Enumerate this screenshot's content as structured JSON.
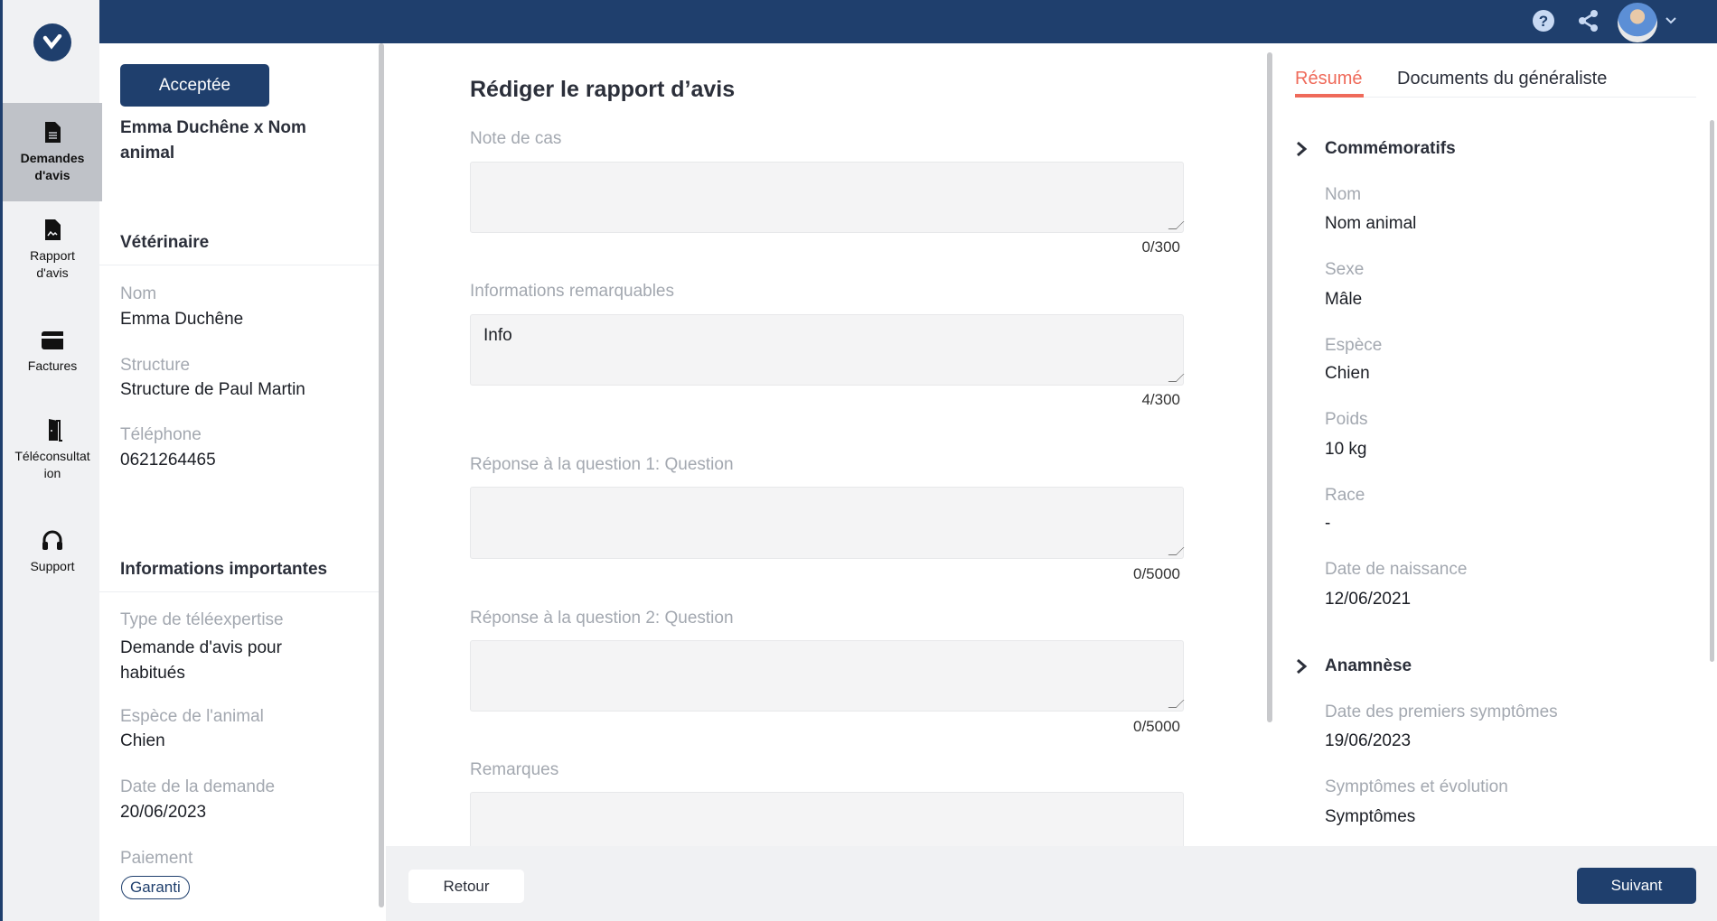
{
  "sidebar": {
    "items": [
      {
        "label1": "Demandes",
        "label2": "d'avis",
        "icon": "document-icon"
      },
      {
        "label1": "Rapport",
        "label2": "d'avis",
        "icon": "signed-document-icon"
      },
      {
        "label1": "Factures",
        "label2": "",
        "icon": "credit-card-icon"
      },
      {
        "label1": "Téléconsultat",
        "label2": "ion",
        "icon": "door-icon"
      },
      {
        "label1": "Support",
        "label2": "",
        "icon": "headset-icon"
      }
    ]
  },
  "topbar": {
    "icons": [
      "help-icon",
      "share-icon",
      "avatar",
      "chevron-down-icon"
    ]
  },
  "left": {
    "status": "Acceptée",
    "title": "Emma Duchêne x Nom animal",
    "vet_heading": "Vétérinaire",
    "vet": [
      {
        "label": "Nom",
        "value": "Emma Duchêne"
      },
      {
        "label": "Structure",
        "value": "Structure de Paul Martin"
      },
      {
        "label": "Téléphone",
        "value": "0621264465"
      }
    ],
    "info_heading": "Informations importantes",
    "info": [
      {
        "label": "Type de téléexpertise",
        "value": "Demande d'avis pour habitués"
      },
      {
        "label": "Espèce de l'animal",
        "value": "Chien"
      },
      {
        "label": "Date de la demande",
        "value": "20/06/2023"
      }
    ],
    "payment_label": "Paiement",
    "payment_badge": "Garanti"
  },
  "main": {
    "title": "Rédiger le rapport d’avis",
    "fields": [
      {
        "label": "Note de cas",
        "value": "",
        "count": "0/300"
      },
      {
        "label": "Informations remarquables",
        "value": "Info",
        "count": "4/300"
      },
      {
        "label": "Réponse à la question 1: Question",
        "value": "",
        "count": "0/5000"
      },
      {
        "label": "Réponse à la question 2: Question",
        "value": "",
        "count": "0/5000"
      },
      {
        "label": "Remarques",
        "value": ""
      }
    ]
  },
  "right": {
    "tabs": [
      {
        "label": "Résumé",
        "active": true
      },
      {
        "label": "Documents du généraliste"
      }
    ],
    "section1": "Commémoratifs",
    "fields1": [
      {
        "label": "Nom",
        "value": "Nom animal"
      },
      {
        "label": "Sexe",
        "value": "Mâle"
      },
      {
        "label": "Espèce",
        "value": "Chien"
      },
      {
        "label": "Poids",
        "value": "10 kg"
      },
      {
        "label": "Race",
        "value": "-"
      },
      {
        "label": "Date de naissance",
        "value": "12/06/2021"
      }
    ],
    "section2": "Anamnèse",
    "fields2": [
      {
        "label": "Date des premiers symptômes",
        "value": "19/06/2023"
      },
      {
        "label": "Symptômes et évolution",
        "value": "Symptômes"
      }
    ]
  },
  "footer": {
    "back": "Retour",
    "next": "Suivant"
  },
  "colors": {
    "primary": "#1f3f6d",
    "accent": "#ef6a5a"
  }
}
